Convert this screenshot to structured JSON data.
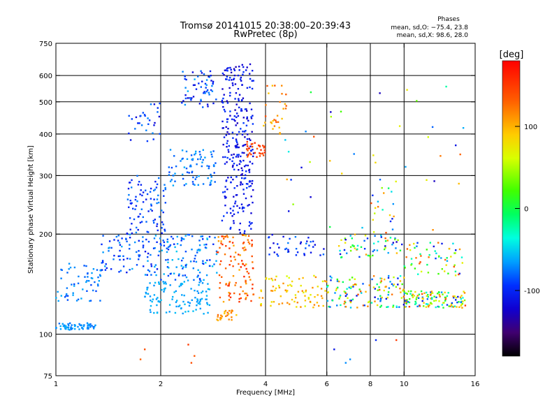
{
  "chart_data": {
    "type": "scatter",
    "title": "Tromsø 20141015 20:38:00–20:39:43",
    "subtitle": "RwPretec (8p)",
    "xlabel": "Frequency [MHz]",
    "ylabel": "Stationary phase Virtual Height [km]",
    "xscale": "log",
    "yscale": "log",
    "xlim": [
      1,
      16
    ],
    "ylim": [
      75,
      750
    ],
    "x_ticks": [
      1,
      2,
      4,
      6,
      8,
      10,
      16
    ],
    "y_ticks": [
      75,
      100,
      200,
      300,
      400,
      500,
      600,
      750
    ],
    "x_gridlines": [
      2,
      4,
      6,
      8,
      10
    ],
    "y_gridlines": [
      100,
      200,
      300,
      400,
      500,
      600
    ],
    "grid": true,
    "stats_header": "Phases",
    "stats": [
      "mean, sd,O: −75.4, 23.8",
      "mean, sd,X:  98.6, 28.0"
    ],
    "colorbar": {
      "label": "[deg]",
      "range": [
        -180,
        180
      ],
      "ticks": [
        100,
        0,
        -100
      ],
      "placement": "right"
    },
    "clusters": [
      {
        "f": [
          1.0,
          1.3
        ],
        "h": [
          103,
          108
        ],
        "phase": [
          -80,
          -60
        ],
        "n": 60
      },
      {
        "f": [
          1.0,
          1.35
        ],
        "h": [
          125,
          165
        ],
        "phase": [
          -90,
          -60
        ],
        "n": 60
      },
      {
        "f": [
          1.35,
          2.0
        ],
        "h": [
          150,
          200
        ],
        "phase": [
          -110,
          -60
        ],
        "n": 90
      },
      {
        "f": [
          1.6,
          2.1
        ],
        "h": [
          200,
          300
        ],
        "phase": [
          -110,
          -70
        ],
        "n": 90
      },
      {
        "f": [
          1.6,
          2.0
        ],
        "h": [
          380,
          500
        ],
        "phase": [
          -120,
          -70
        ],
        "n": 30
      },
      {
        "f": [
          1.8,
          2.8
        ],
        "h": [
          115,
          145
        ],
        "phase": [
          -70,
          -55
        ],
        "n": 110
      },
      {
        "f": [
          2.0,
          2.9
        ],
        "h": [
          145,
          200
        ],
        "phase": [
          -100,
          -50
        ],
        "n": 110
      },
      {
        "f": [
          2.1,
          2.9
        ],
        "h": [
          280,
          360
        ],
        "phase": [
          -90,
          -60
        ],
        "n": 80
      },
      {
        "f": [
          2.3,
          2.9
        ],
        "h": [
          480,
          620
        ],
        "phase": [
          -120,
          -60
        ],
        "n": 60
      },
      {
        "f": [
          2.9,
          3.3
        ],
        "h": [
          110,
          118
        ],
        "phase": [
          90,
          130
        ],
        "n": 25
      },
      {
        "f": [
          2.9,
          3.7
        ],
        "h": [
          125,
          200
        ],
        "phase": [
          100,
          160
        ],
        "n": 110
      },
      {
        "f": [
          3.0,
          3.7
        ],
        "h": [
          200,
          300
        ],
        "phase": [
          -120,
          -90
        ],
        "n": 80
      },
      {
        "f": [
          3.0,
          3.7
        ],
        "h": [
          300,
          650
        ],
        "phase": [
          -130,
          -90
        ],
        "n": 200
      },
      {
        "f": [
          3.5,
          4.0
        ],
        "h": [
          340,
          380
        ],
        "phase": [
          130,
          160
        ],
        "n": 35
      },
      {
        "f": [
          3.9,
          4.6
        ],
        "h": [
          400,
          560
        ],
        "phase": [
          90,
          140
        ],
        "n": 30
      },
      {
        "f": [
          3.8,
          6.0
        ],
        "h": [
          120,
          150
        ],
        "phase": [
          60,
          120
        ],
        "n": 80
      },
      {
        "f": [
          4.0,
          6.0
        ],
        "h": [
          170,
          200
        ],
        "phase": [
          -120,
          -70
        ],
        "n": 40
      },
      {
        "f": [
          6.0,
          10.0
        ],
        "h": [
          120,
          150
        ],
        "phase": [
          -120,
          140
        ],
        "n": 130
      },
      {
        "f": [
          6.5,
          10.0
        ],
        "h": [
          170,
          200
        ],
        "phase": [
          -130,
          130
        ],
        "n": 60
      },
      {
        "f": [
          10.0,
          15.0
        ],
        "h": [
          120,
          135
        ],
        "phase": [
          -110,
          150
        ],
        "n": 130
      },
      {
        "f": [
          10.0,
          15.0
        ],
        "h": [
          150,
          190
        ],
        "phase": [
          -120,
          140
        ],
        "n": 60
      },
      {
        "f": [
          8.0,
          9.5
        ],
        "h": [
          200,
          300
        ],
        "phase": [
          -110,
          140
        ],
        "n": 20
      },
      {
        "f": [
          4.5,
          15.0
        ],
        "h": [
          200,
          600
        ],
        "phase": [
          -130,
          140
        ],
        "n": 40
      }
    ],
    "points": [
      {
        "f": 1.75,
        "h": 84,
        "phase": 130
      },
      {
        "f": 2.45,
        "h": 82,
        "phase": 140
      },
      {
        "f": 2.5,
        "h": 86,
        "phase": 135
      },
      {
        "f": 2.4,
        "h": 93,
        "phase": 150
      },
      {
        "f": 1.8,
        "h": 90,
        "phase": 140
      },
      {
        "f": 6.8,
        "h": 82,
        "phase": -70
      },
      {
        "f": 7.0,
        "h": 84,
        "phase": -70
      },
      {
        "f": 6.3,
        "h": 90,
        "phase": -110
      },
      {
        "f": 8.3,
        "h": 96,
        "phase": -100
      },
      {
        "f": 9.5,
        "h": 96,
        "phase": 150
      }
    ]
  }
}
